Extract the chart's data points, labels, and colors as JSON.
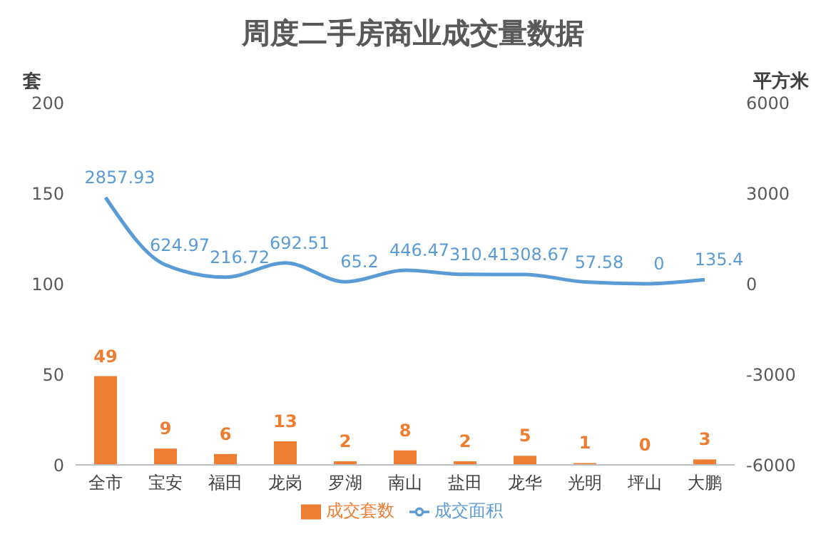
{
  "chart_data": {
    "type": "bar",
    "title": "周度二手房商业成交量数据",
    "ylabel": "套",
    "y2label": "平方米",
    "categories": [
      "全市",
      "宝安",
      "福田",
      "龙岗",
      "罗湖",
      "南山",
      "盐田",
      "龙华",
      "光明",
      "坪山",
      "大鹏"
    ],
    "series": [
      {
        "name": "成交套数",
        "color": "#ed7d31",
        "values": [
          49,
          9,
          6,
          13,
          2,
          8,
          2,
          5,
          1,
          0,
          3
        ]
      },
      {
        "name": "成交面积",
        "type": "line",
        "axis": "y2",
        "color": "#5b9bd5",
        "values": [
          2857.93,
          624.97,
          216.72,
          692.51,
          65.2,
          446.47,
          310.41,
          308.67,
          57.58,
          0,
          135.4
        ]
      }
    ],
    "ylim": [
      0,
      200
    ],
    "yticks": [
      0,
      50,
      100,
      150,
      200
    ],
    "y2lim": [
      -6000,
      6000
    ],
    "y2ticks": [
      -6000,
      -3000,
      0,
      3000,
      6000
    ],
    "data_labels": true,
    "legend": "bottom",
    "grid": false,
    "marker": "none",
    "line_style": "solid"
  }
}
